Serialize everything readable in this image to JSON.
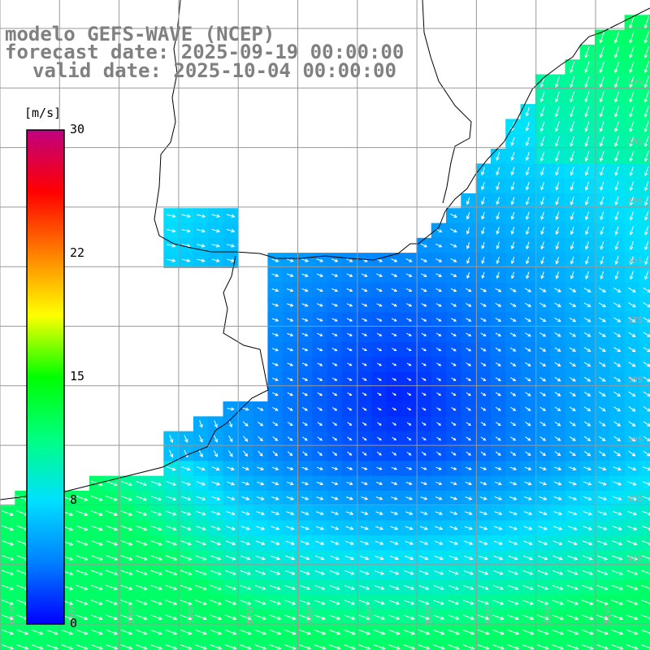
{
  "header": {
    "model": "modelo GEFS-WAVE (NCEP)",
    "forecast_date": "forecast date: 2025-09-19 00:00:00",
    "valid_date": "valid date: 2025-10-04 00:00:00"
  },
  "colorbar": {
    "unit": "[m/s]",
    "min": 0,
    "max": 30,
    "ticks": [
      "30",
      "22",
      "15",
      "8",
      "0"
    ],
    "tick_values": [
      30,
      22,
      15,
      8,
      0
    ],
    "colors": [
      "#0000ff",
      "#0080ff",
      "#00e0ff",
      "#00ff80",
      "#00ff00",
      "#ffff00",
      "#ff8000",
      "#ff0000",
      "#c00080"
    ]
  },
  "grid": {
    "lat_labels": [
      "33S",
      "34S",
      "35S",
      "36S",
      "37S",
      "38S",
      "39S",
      "40S",
      "41S"
    ],
    "lon_labels": [
      "61W",
      "60W",
      "59W",
      "58W",
      "57W",
      "56W",
      "55W",
      "54W",
      "53W",
      "52W",
      "51W",
      "50W"
    ]
  }
}
